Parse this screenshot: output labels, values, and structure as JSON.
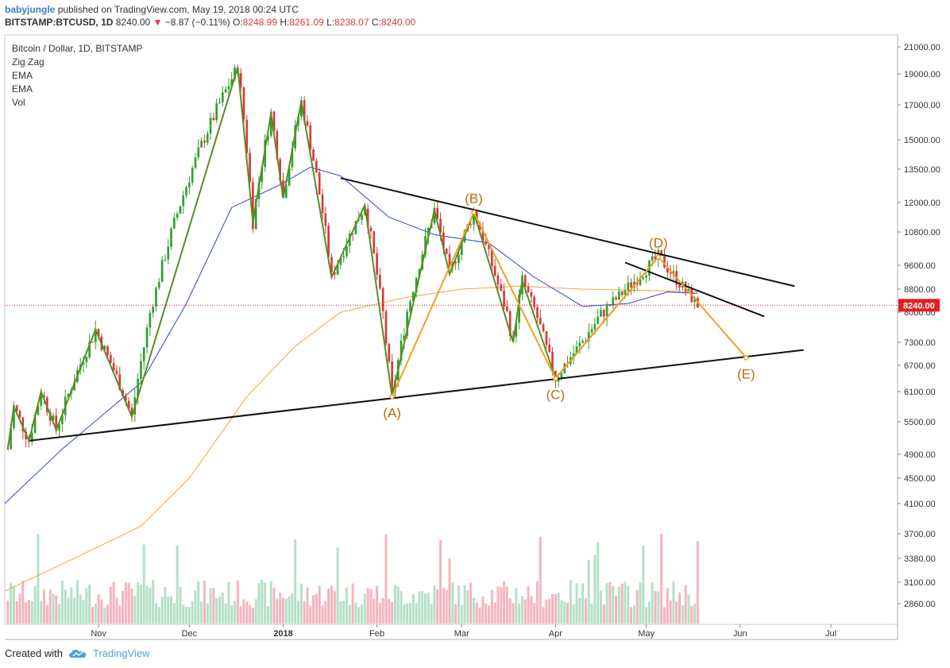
{
  "header": {
    "author": "babyjungle",
    "published": "published on TradingView.com, May 19, 2018 00:24 UTC",
    "symbol": "BITSTAMP:BTCUSD, 1D",
    "last": "8240.00",
    "change_arrow": "▼",
    "change": "−8.87 (−0.11%)",
    "o_label": "O:",
    "o": "8248.99",
    "h_label": "H:",
    "h": "8261.09",
    "l_label": "L:",
    "l": "8238.07",
    "c_label": "C:",
    "c": "8240.00"
  },
  "legend": [
    "Bitcoin / Dollar, 1D, BITSTAMP",
    "Zig Zag",
    "EMA",
    "EMA",
    "Vol"
  ],
  "footer": {
    "created_with": "Created with",
    "brand": "TradingView"
  },
  "colors": {
    "up": "#2ea02e",
    "down": "#d9383c",
    "zigzag": "#5a8c22",
    "ema_fast": "#2f3fd6",
    "ema_slow": "#f5a43a",
    "pattern": "#f2a024",
    "trendline": "#111111",
    "price_line": "#e02020",
    "label": "#b56d10",
    "vol_up": "#b6e0c8",
    "vol_down": "#f4b6bd"
  },
  "chart_data": {
    "type": "candlestick",
    "price_axis_ticks": [
      2860,
      3100,
      3380,
      3700,
      4100,
      4500,
      4900,
      5500,
      6100,
      6700,
      7300,
      8000,
      8800,
      9600,
      10800,
      12000,
      13500,
      15000,
      17000,
      19000,
      21000
    ],
    "price_axis_labels": [
      "2860.00",
      "3100.00",
      "3380.00",
      "3700.00",
      "4100.00",
      "4500.00",
      "4900.00",
      "5500.00",
      "6100.00",
      "6700.00",
      "7300.00",
      "8000.00",
      "8800.00",
      "9600.00",
      "10800.00",
      "12000.00",
      "13500.00",
      "15000.00",
      "17000.00",
      "19000.00",
      "21000.00"
    ],
    "last_price": 8240,
    "last_price_label": "8240.00",
    "time_axis": [
      {
        "label": "Nov",
        "date": "2017-11-01"
      },
      {
        "label": "Dec",
        "date": "2017-12-01"
      },
      {
        "label": "2018",
        "date": "2018-01-01",
        "bold": true
      },
      {
        "label": "Feb",
        "date": "2018-02-01"
      },
      {
        "label": "Mar",
        "date": "2018-03-01"
      },
      {
        "label": "Apr",
        "date": "2018-04-01"
      },
      {
        "label": "May",
        "date": "2018-05-01"
      },
      {
        "label": "Jun",
        "date": "2018-06-01"
      },
      {
        "label": "Jul",
        "date": "2018-07-01"
      }
    ],
    "zigzag": [
      {
        "date": "2017-10-02",
        "price": 5000
      },
      {
        "date": "2017-10-04",
        "price": 5800
      },
      {
        "date": "2017-10-09",
        "price": 5150
      },
      {
        "date": "2017-10-13",
        "price": 6100
      },
      {
        "date": "2017-10-18",
        "price": 5350
      },
      {
        "date": "2017-10-31",
        "price": 7600
      },
      {
        "date": "2017-11-12",
        "price": 5600
      },
      {
        "date": "2017-12-17",
        "price": 19500
      },
      {
        "date": "2017-12-22",
        "price": 11200
      },
      {
        "date": "2017-12-28",
        "price": 16500
      },
      {
        "date": "2018-01-01",
        "price": 12200
      },
      {
        "date": "2018-01-07",
        "price": 17200
      },
      {
        "date": "2018-01-17",
        "price": 9200
      },
      {
        "date": "2018-01-28",
        "price": 11900
      },
      {
        "date": "2018-02-06",
        "price": 6000
      },
      {
        "date": "2018-02-20",
        "price": 11700
      },
      {
        "date": "2018-02-25",
        "price": 9300
      },
      {
        "date": "2018-03-05",
        "price": 11600
      },
      {
        "date": "2018-03-18",
        "price": 7300
      },
      {
        "date": "2018-03-21",
        "price": 9100
      },
      {
        "date": "2018-04-01",
        "price": 6400
      },
      {
        "date": "2018-05-05",
        "price": 9900
      }
    ],
    "abcde": [
      {
        "label": "(A)",
        "date": "2018-02-06",
        "price": 6000
      },
      {
        "label": "(B)",
        "date": "2018-03-05",
        "price": 11600
      },
      {
        "label": "(C)",
        "date": "2018-04-01",
        "price": 6400
      },
      {
        "label": "(D)",
        "date": "2018-05-05",
        "price": 9900
      },
      {
        "label": "(E)",
        "date": "2018-06-03",
        "price": 6900
      }
    ],
    "trendlines": [
      {
        "name": "lower",
        "from": {
          "date": "2017-10-09",
          "price": 5150
        },
        "to": {
          "date": "2018-06-22",
          "price": 7100
        }
      },
      {
        "name": "upper",
        "from": {
          "date": "2018-01-20",
          "price": 13100
        },
        "to": {
          "date": "2018-06-19",
          "price": 8900
        }
      },
      {
        "name": "inner",
        "from": {
          "date": "2018-04-24",
          "price": 9700
        },
        "to": {
          "date": "2018-06-09",
          "price": 7900
        }
      }
    ],
    "ema_fast_points": [
      {
        "date": "2017-10-01",
        "price": 4100
      },
      {
        "date": "2017-10-20",
        "price": 5000
      },
      {
        "date": "2017-11-15",
        "price": 6300
      },
      {
        "date": "2017-11-30",
        "price": 8300
      },
      {
        "date": "2017-12-15",
        "price": 11800
      },
      {
        "date": "2017-12-31",
        "price": 12800
      },
      {
        "date": "2018-01-10",
        "price": 13600
      },
      {
        "date": "2018-01-20",
        "price": 13200
      },
      {
        "date": "2018-02-05",
        "price": 11400
      },
      {
        "date": "2018-02-20",
        "price": 10700
      },
      {
        "date": "2018-03-10",
        "price": 10400
      },
      {
        "date": "2018-03-25",
        "price": 9200
      },
      {
        "date": "2018-04-10",
        "price": 8200
      },
      {
        "date": "2018-04-25",
        "price": 8300
      },
      {
        "date": "2018-05-08",
        "price": 8700
      },
      {
        "date": "2018-05-18",
        "price": 8650
      }
    ],
    "ema_slow_points": [
      {
        "date": "2017-10-01",
        "price": 3000
      },
      {
        "date": "2017-10-25",
        "price": 3400
      },
      {
        "date": "2017-11-15",
        "price": 3800
      },
      {
        "date": "2017-12-01",
        "price": 4500
      },
      {
        "date": "2017-12-20",
        "price": 6000
      },
      {
        "date": "2018-01-05",
        "price": 7200
      },
      {
        "date": "2018-01-20",
        "price": 8000
      },
      {
        "date": "2018-02-10",
        "price": 8500
      },
      {
        "date": "2018-03-01",
        "price": 8800
      },
      {
        "date": "2018-03-20",
        "price": 8900
      },
      {
        "date": "2018-04-10",
        "price": 8800
      },
      {
        "date": "2018-05-01",
        "price": 8750
      },
      {
        "date": "2018-05-18",
        "price": 8700
      }
    ]
  }
}
